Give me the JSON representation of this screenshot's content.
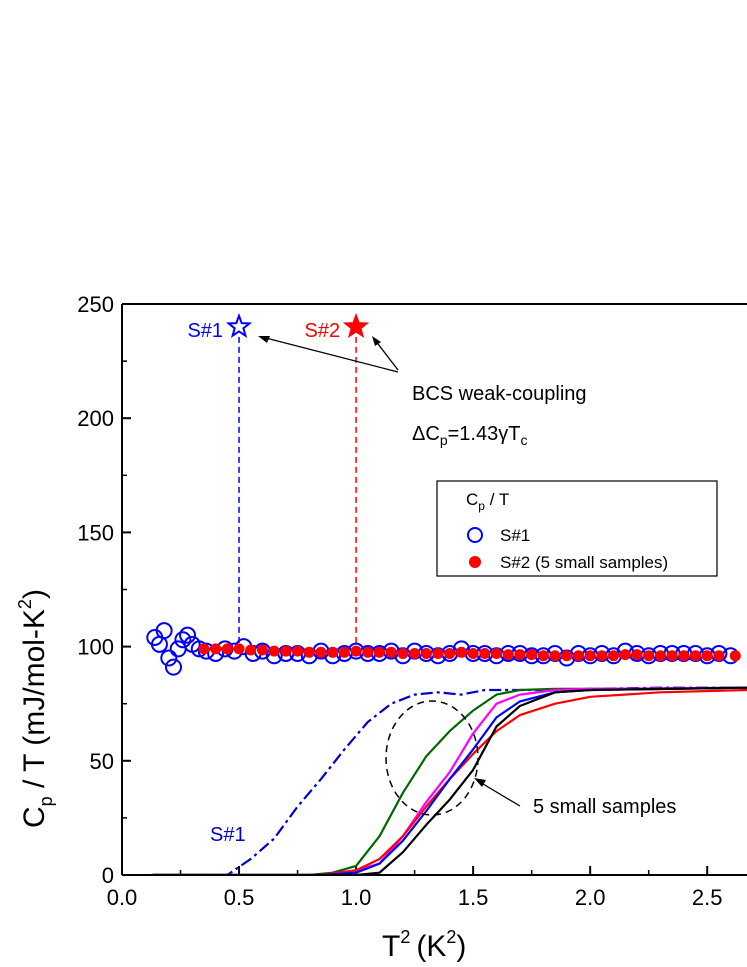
{
  "chart_data": {
    "type": "scatter",
    "xlabel": "T",
    "xlabel_sup": "2",
    "xlabel_unit": "(K",
    "xlabel_unit_sup": "2",
    "xlabel_close": ")",
    "ylabel_main": "C",
    "ylabel_sub": "p",
    "ylabel_rest": " / T (mJ/mol-K",
    "ylabel_sup": "2",
    "ylabel_close": ")",
    "xlim": [
      0.0,
      2.67
    ],
    "ylim": [
      0,
      250
    ],
    "x_ticks": [
      0.0,
      0.5,
      1.0,
      1.5,
      2.0,
      2.5
    ],
    "x_tick_labels": [
      "0.0",
      "0.5",
      "1.0",
      "1.5",
      "2.0",
      "2.5"
    ],
    "y_ticks": [
      0,
      50,
      100,
      150,
      200,
      250
    ],
    "y_tick_labels": [
      "0",
      "50",
      "100",
      "150",
      "200",
      "250"
    ],
    "legend": {
      "title_main": "C",
      "title_sub": "p",
      "title_rest": " / T",
      "placement": "center-right",
      "entries": [
        {
          "label": "S#1",
          "marker": "open-circle",
          "color": "#0000ff"
        },
        {
          "label": "S#2 (5 small samples)",
          "marker": "filled-circle",
          "color": "#ff0000"
        }
      ]
    },
    "series": [
      {
        "name": "S#1",
        "kind": "scatter",
        "marker": "open-circle",
        "color": "#0000ff",
        "x": [
          0.14,
          0.16,
          0.18,
          0.2,
          0.22,
          0.24,
          0.26,
          0.28,
          0.3,
          0.33,
          0.36,
          0.4,
          0.44,
          0.48,
          0.52,
          0.56,
          0.6,
          0.65,
          0.7,
          0.75,
          0.8,
          0.85,
          0.9,
          0.95,
          1.0,
          1.05,
          1.1,
          1.15,
          1.2,
          1.25,
          1.3,
          1.35,
          1.4,
          1.45,
          1.5,
          1.55,
          1.6,
          1.65,
          1.7,
          1.75,
          1.8,
          1.85,
          1.9,
          1.95,
          2.0,
          2.05,
          2.1,
          2.15,
          2.2,
          2.25,
          2.3,
          2.35,
          2.4,
          2.45,
          2.5,
          2.55,
          2.6
        ],
        "y": [
          104,
          101,
          107,
          95,
          91,
          99,
          103,
          105,
          101,
          99,
          98,
          97,
          99,
          98,
          100,
          97,
          98,
          96,
          97,
          97,
          96,
          98,
          96,
          97,
          98,
          97,
          97,
          98,
          96,
          98,
          97,
          96,
          97,
          99,
          97,
          97,
          96,
          97,
          97,
          96,
          96,
          97,
          95,
          97,
          96,
          97,
          96,
          98,
          97,
          96,
          97,
          97,
          97,
          97,
          96,
          97,
          96
        ]
      },
      {
        "name": "S#2 (5 small samples)",
        "kind": "scatter",
        "marker": "filled-circle",
        "color": "#ff0000",
        "x": [
          0.35,
          0.4,
          0.45,
          0.5,
          0.55,
          0.6,
          0.65,
          0.7,
          0.75,
          0.8,
          0.85,
          0.9,
          0.95,
          1.0,
          1.05,
          1.1,
          1.15,
          1.2,
          1.25,
          1.3,
          1.35,
          1.4,
          1.45,
          1.5,
          1.55,
          1.6,
          1.65,
          1.7,
          1.75,
          1.8,
          1.85,
          1.9,
          1.95,
          2.0,
          2.05,
          2.1,
          2.15,
          2.2,
          2.25,
          2.3,
          2.35,
          2.4,
          2.45,
          2.5,
          2.55,
          2.62
        ],
        "y": [
          99,
          99,
          99,
          99,
          98.5,
          98.5,
          98,
          98,
          98,
          97.5,
          97.5,
          97.5,
          97.5,
          98,
          97.5,
          97.5,
          97.5,
          97,
          97,
          97,
          97,
          97,
          97.5,
          97,
          97,
          97,
          96.5,
          96.5,
          96.5,
          96,
          96,
          96,
          96,
          96,
          96,
          96,
          96.5,
          96.5,
          96,
          96,
          96,
          96,
          96,
          96,
          96,
          96
        ]
      },
      {
        "name": "S#1",
        "kind": "line",
        "style": "dashdot",
        "color": "#0000cc",
        "x": [
          0.13,
          0.3,
          0.45,
          0.55,
          0.65,
          0.75,
          0.85,
          0.95,
          1.05,
          1.15,
          1.25,
          1.35,
          1.45,
          1.55,
          1.65,
          1.8,
          2.0,
          2.3,
          2.67
        ],
        "y": [
          0,
          0,
          0,
          7,
          16,
          30,
          42,
          55,
          67,
          75,
          79,
          80,
          79,
          81,
          81,
          81,
          81.5,
          82,
          82
        ]
      },
      {
        "name": "",
        "kind": "line",
        "color": "#006600",
        "x": [
          0.13,
          0.7,
          0.8,
          0.9,
          1.0,
          1.1,
          1.2,
          1.3,
          1.4,
          1.5,
          1.6,
          1.7,
          1.85,
          2.0,
          2.67
        ],
        "y": [
          0,
          0,
          0,
          1,
          4,
          17,
          36,
          52,
          63,
          72,
          79,
          81,
          81.5,
          81.5,
          82
        ]
      },
      {
        "name": "",
        "kind": "line",
        "color": "#ff00ff",
        "x": [
          0.13,
          0.7,
          0.85,
          1.0,
          1.1,
          1.2,
          1.3,
          1.4,
          1.5,
          1.6,
          1.7,
          1.85,
          2.0,
          2.67
        ],
        "y": [
          0,
          0,
          0,
          2,
          5,
          17,
          32,
          45,
          62,
          75,
          79,
          81,
          81.5,
          82
        ]
      },
      {
        "name": "",
        "kind": "line",
        "color": "#ff0000",
        "x": [
          0.13,
          0.7,
          0.85,
          1.0,
          1.1,
          1.2,
          1.3,
          1.4,
          1.5,
          1.6,
          1.7,
          1.85,
          2.0,
          2.3,
          2.67
        ],
        "y": [
          0,
          0,
          0,
          2,
          7,
          17,
          30,
          42,
          53,
          63,
          70,
          75,
          78,
          80,
          81
        ]
      },
      {
        "name": "",
        "kind": "line",
        "color": "#0000ff",
        "x": [
          0.13,
          0.7,
          0.85,
          1.0,
          1.1,
          1.2,
          1.3,
          1.4,
          1.5,
          1.6,
          1.7,
          1.85,
          2.0,
          2.67
        ],
        "y": [
          0,
          0,
          0,
          1,
          5,
          15,
          28,
          42,
          55,
          69,
          76,
          80,
          81,
          82
        ]
      },
      {
        "name": "",
        "kind": "line",
        "color": "#000000",
        "x": [
          0.13,
          0.8,
          1.0,
          1.1,
          1.2,
          1.3,
          1.4,
          1.5,
          1.6,
          1.7,
          1.85,
          2.0,
          2.67
        ],
        "y": [
          0,
          0,
          0,
          1,
          10,
          22,
          33,
          46,
          65,
          74,
          80,
          81,
          82
        ]
      }
    ],
    "stars": [
      {
        "label": "S#1",
        "x": 0.5,
        "y": 240,
        "filled": false,
        "color": "#0000ff"
      },
      {
        "label": "S#2",
        "x": 1.0,
        "y": 240,
        "filled": true,
        "color": "#ff0000"
      }
    ],
    "annotations": {
      "bcs_line1": "BCS weak-coupling",
      "bcs_line2_a": "ΔC",
      "bcs_line2_sub": "p",
      "bcs_line2_b": "=1.43γT",
      "bcs_line2_sub2": "c",
      "s1_curve_label": "S#1",
      "small_samples": "5 small samples"
    }
  }
}
